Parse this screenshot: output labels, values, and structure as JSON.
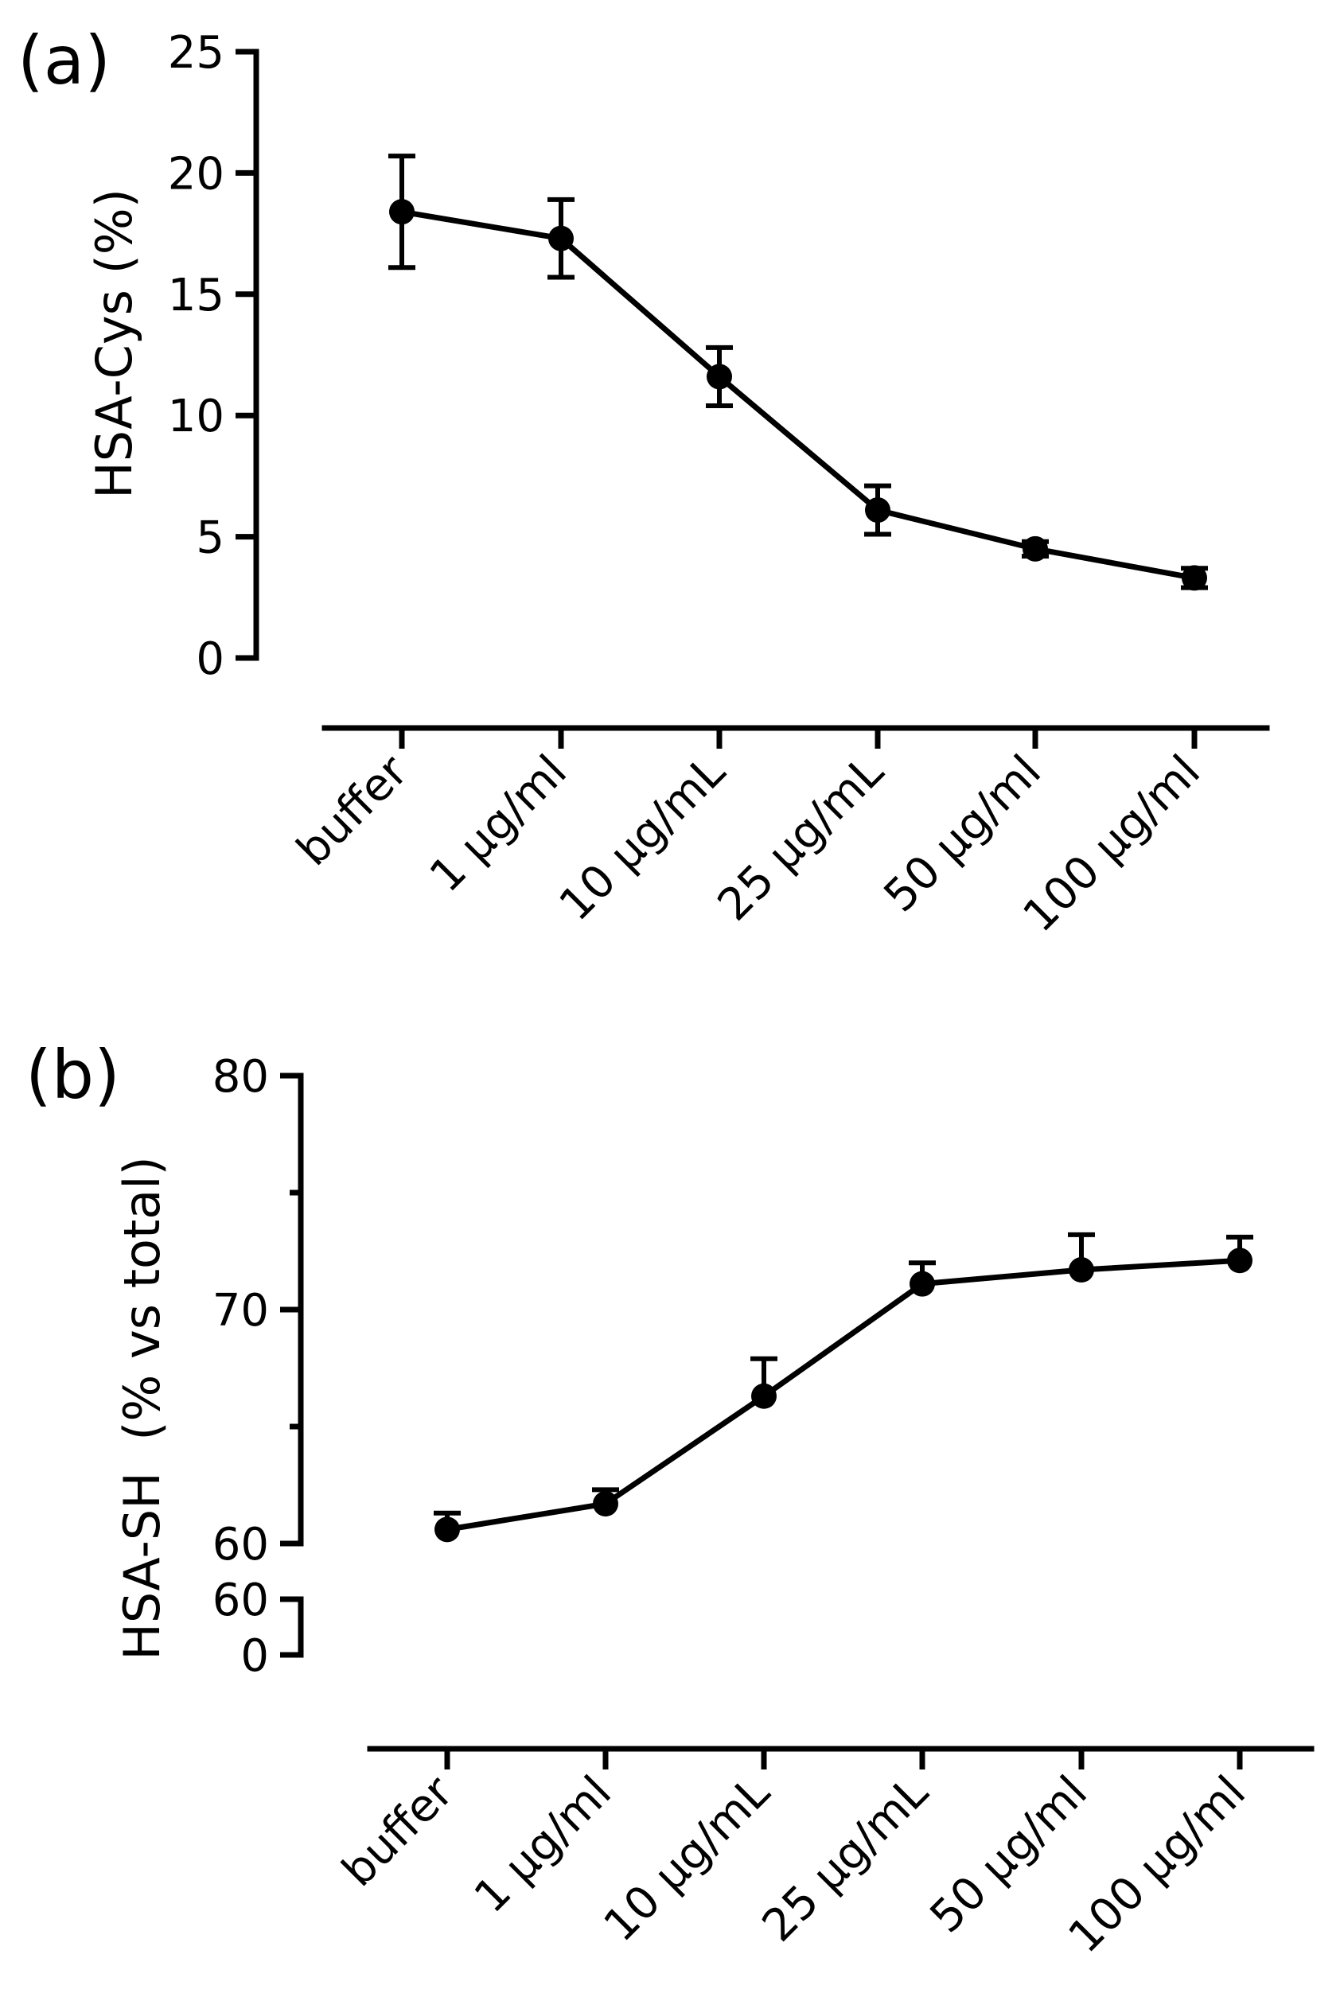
{
  "chart_data": [
    {
      "panel": "(a)",
      "type": "line",
      "title": "",
      "xlabel": "",
      "ylabel": "HSA-Cys (%)",
      "ylim": [
        0,
        25
      ],
      "yticks": [
        "0",
        "5",
        "10",
        "15",
        "20",
        "25"
      ],
      "categories": [
        "buffer",
        "1 μg/ml",
        "10 μg/mL",
        "25 μg/mL",
        "50 μg/ml",
        "100 μg/ml"
      ],
      "series": [
        {
          "name": "HSA-Cys",
          "values": [
            18.4,
            17.3,
            11.6,
            6.1,
            4.5,
            3.3
          ],
          "error_low": [
            2.3,
            1.6,
            1.2,
            1.0,
            0.3,
            0.4
          ],
          "error_high": [
            2.3,
            1.6,
            1.2,
            1.0,
            0.3,
            0.4
          ],
          "error_style": "both"
        }
      ]
    },
    {
      "panel": "(b)",
      "type": "line",
      "title": "",
      "xlabel": "",
      "ylabel": "HSA-SH  (% vs total)",
      "ylim": [
        60,
        80
      ],
      "y_break": true,
      "yticks": [
        "60",
        "70",
        "80"
      ],
      "ybreak_ticks": [
        "60",
        "0"
      ],
      "categories": [
        "buffer",
        "1 μg/ml",
        "10 μg/mL",
        "25 μg/mL",
        "50 μg/ml",
        "100 μg/ml"
      ],
      "series": [
        {
          "name": "HSA-SH",
          "values": [
            60.6,
            61.7,
            66.3,
            71.1,
            71.7,
            72.1
          ],
          "error_low": [
            0,
            0,
            0,
            0,
            0,
            0
          ],
          "error_high": [
            0.7,
            0.6,
            1.6,
            0.9,
            1.5,
            1.0
          ],
          "error_style": "upper"
        }
      ]
    }
  ]
}
